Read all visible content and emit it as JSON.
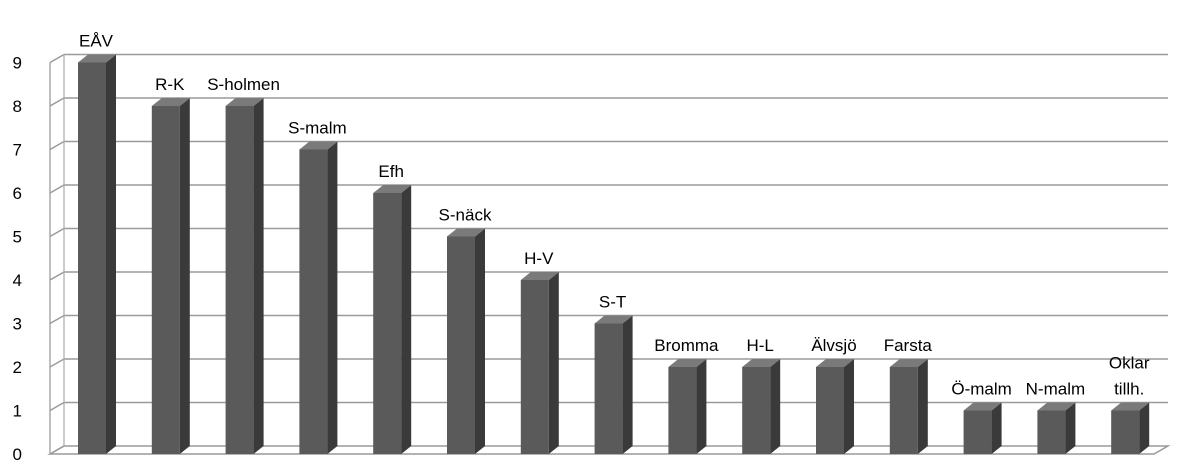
{
  "chart_data": {
    "type": "bar",
    "categories": [
      "EÅV",
      "R-K",
      "S-holmen",
      "S-malm",
      "Efh",
      "S-näck",
      "H-V",
      "S-T",
      "Bromma",
      "H-L",
      "Älvsjö",
      "Farsta",
      "Ö-malm",
      "N-malm",
      "Oklar tillh."
    ],
    "category_label_lines": [
      [
        "EÅV"
      ],
      [
        "R-K"
      ],
      [
        "S-holmen"
      ],
      [
        "S-malm"
      ],
      [
        "Efh"
      ],
      [
        "S-näck"
      ],
      [
        "H-V"
      ],
      [
        "S-T"
      ],
      [
        "Bromma"
      ],
      [
        "H-L"
      ],
      [
        "Älvsjö"
      ],
      [
        "Farsta"
      ],
      [
        "Ö-malm"
      ],
      [
        "N-malm"
      ],
      [
        "Oklar",
        "tillh."
      ]
    ],
    "values": [
      9,
      8,
      8,
      7,
      6,
      5,
      4,
      3,
      2,
      2,
      2,
      2,
      1,
      1,
      1
    ],
    "yticks": [
      "0",
      "1",
      "2",
      "3",
      "4",
      "5",
      "6",
      "7",
      "8",
      "9"
    ],
    "ylim": [
      0,
      9
    ],
    "grid": true,
    "three_d": true,
    "colors": {
      "bar_front": "#5a5a5a",
      "bar_side": "#3a3a3a",
      "bar_top": "#7a7a7a",
      "grid": "#9a9a9a",
      "wall": "#aaaaaa"
    }
  }
}
